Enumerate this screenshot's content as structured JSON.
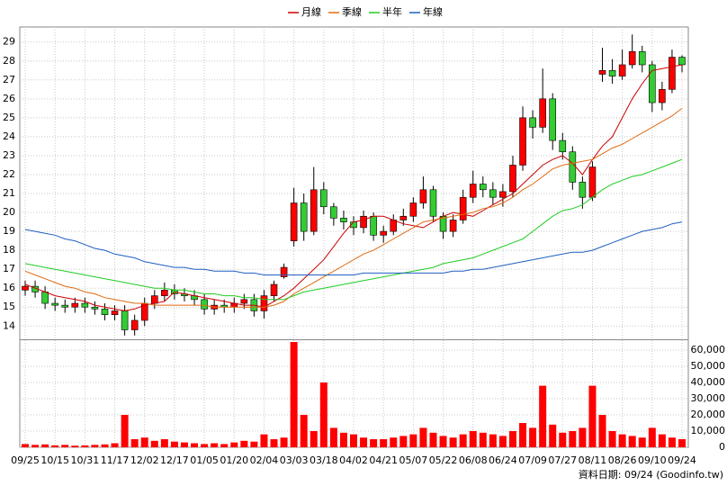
{
  "chart_data": {
    "type": "candlestick",
    "categories": [
      "09/25",
      null,
      null,
      "10/15",
      null,
      null,
      "10/31",
      null,
      null,
      "11/17",
      null,
      null,
      "12/02",
      null,
      null,
      "12/17",
      null,
      null,
      "01/05",
      null,
      null,
      "01/20",
      null,
      null,
      "02/04",
      null,
      null,
      "03/03",
      null,
      null,
      "03/18",
      null,
      null,
      "04/02",
      null,
      null,
      "04/21",
      null,
      null,
      "05/07",
      null,
      null,
      "05/22",
      null,
      null,
      "06/08",
      null,
      null,
      "06/24",
      null,
      null,
      "07/09",
      null,
      null,
      "07/27",
      null,
      null,
      "08/11",
      null,
      null,
      "08/26",
      null,
      null,
      "09/10",
      null,
      null,
      "09/24"
    ],
    "open": [
      15.9,
      16.1,
      15.8,
      15.2,
      15.1,
      15.0,
      15.2,
      15.0,
      14.9,
      14.6,
      14.8,
      13.8,
      14.3,
      15.2,
      15.6,
      15.9,
      15.7,
      15.6,
      15.4,
      14.9,
      15.1,
      15.0,
      15.2,
      15.4,
      14.8,
      15.6,
      16.6,
      18.5,
      20.5,
      19.0,
      21.2,
      20.3,
      19.7,
      19.5,
      19.2,
      19.8,
      18.8,
      19.0,
      19.6,
      19.8,
      20.5,
      21.2,
      19.8,
      19.0,
      19.6,
      20.8,
      21.5,
      21.2,
      20.8,
      21.1,
      22.5,
      25.0,
      24.5,
      26.0,
      23.8,
      23.2,
      21.6,
      20.8,
      27.3,
      27.5,
      27.2,
      27.8,
      28.5,
      27.8,
      25.8,
      26.5,
      28.2
    ],
    "high": [
      16.4,
      16.4,
      16.1,
      15.5,
      15.4,
      15.5,
      15.5,
      15.3,
      15.2,
      15.1,
      15.1,
      14.6,
      15.5,
      15.9,
      16.3,
      16.2,
      16.0,
      15.9,
      15.7,
      15.4,
      15.4,
      15.5,
      15.7,
      15.7,
      15.9,
      16.4,
      17.3,
      21.3,
      21.0,
      22.4,
      21.6,
      20.5,
      20.1,
      19.8,
      20.1,
      20.0,
      19.3,
      19.9,
      20.2,
      20.8,
      21.9,
      21.4,
      20.0,
      19.9,
      21.2,
      22.2,
      21.9,
      21.6,
      21.5,
      23.0,
      25.6,
      25.4,
      27.6,
      26.3,
      24.2,
      23.5,
      21.9,
      22.7,
      28.7,
      28.1,
      28.6,
      29.4,
      28.8,
      28.0,
      26.9,
      28.6,
      28.3
    ],
    "low": [
      15.6,
      15.5,
      14.9,
      14.8,
      14.7,
      14.7,
      14.7,
      14.6,
      14.3,
      14.3,
      13.5,
      13.5,
      14.0,
      14.9,
      15.3,
      15.4,
      15.3,
      15.1,
      14.6,
      14.6,
      14.7,
      14.7,
      14.9,
      14.5,
      14.4,
      15.3,
      16.5,
      18.2,
      18.5,
      18.8,
      19.9,
      19.3,
      19.1,
      18.8,
      18.9,
      18.5,
      18.4,
      18.8,
      19.3,
      19.5,
      20.2,
      19.5,
      18.6,
      18.7,
      19.4,
      20.5,
      20.8,
      20.4,
      20.3,
      20.8,
      22.2,
      23.9,
      24.2,
      23.3,
      22.8,
      21.2,
      20.2,
      20.6,
      26.9,
      26.8,
      27.0,
      27.6,
      27.4,
      25.3,
      25.4,
      26.3,
      27.4
    ],
    "close": [
      16.1,
      15.8,
      15.2,
      15.1,
      15.0,
      15.2,
      15.0,
      14.9,
      14.6,
      14.8,
      13.8,
      14.3,
      15.2,
      15.6,
      15.9,
      15.7,
      15.6,
      15.4,
      14.9,
      15.1,
      15.0,
      15.2,
      15.4,
      14.8,
      15.6,
      16.2,
      17.1,
      20.5,
      19.0,
      21.2,
      20.3,
      19.7,
      19.5,
      19.2,
      19.8,
      18.8,
      19.0,
      19.6,
      19.8,
      20.5,
      21.2,
      19.8,
      19.0,
      19.6,
      20.8,
      21.5,
      21.2,
      20.8,
      21.1,
      22.5,
      25.0,
      24.5,
      26.0,
      23.8,
      23.2,
      21.6,
      20.8,
      22.4,
      27.5,
      27.2,
      27.8,
      28.5,
      27.8,
      25.8,
      26.5,
      28.2,
      27.8
    ],
    "volume": [
      2000,
      1500,
      1800,
      1200,
      1500,
      1000,
      1200,
      1500,
      1800,
      2500,
      20000,
      5000,
      6000,
      4000,
      5000,
      3500,
      3000,
      2500,
      2000,
      2500,
      2000,
      3000,
      4000,
      3500,
      8000,
      5000,
      6000,
      65000,
      20000,
      10000,
      40000,
      12000,
      9000,
      8000,
      6000,
      5000,
      5000,
      6000,
      7000,
      8000,
      12000,
      9000,
      7000,
      6000,
      8000,
      10000,
      9000,
      8000,
      7000,
      10000,
      15000,
      12000,
      38000,
      14000,
      9000,
      10000,
      12000,
      38000,
      20000,
      10000,
      8000,
      7000,
      6000,
      12000,
      8000,
      6000,
      5000
    ],
    "up_color": "#ff0000",
    "down_color": "#33cc33",
    "volume_color": "#ff0000",
    "series": [
      {
        "name": "月線",
        "color": "#cc0000",
        "values": [
          16.2,
          16.0,
          15.8,
          15.6,
          15.5,
          15.4,
          15.3,
          15.1,
          15.0,
          14.9,
          14.8,
          14.9,
          15.1,
          15.2,
          15.3,
          15.8,
          15.7,
          15.6,
          15.5,
          15.4,
          15.3,
          15.2,
          15.1,
          15.1,
          15.0,
          15.3,
          15.6,
          16.0,
          16.5,
          17.0,
          17.5,
          18.2,
          18.9,
          19.5,
          19.6,
          19.8,
          19.8,
          19.6,
          19.4,
          19.3,
          19.2,
          19.5,
          19.8,
          20.0,
          19.9,
          19.8,
          20.1,
          20.4,
          20.7,
          21.0,
          21.5,
          22.0,
          22.5,
          22.8,
          23.0,
          22.6,
          22.0,
          22.8,
          23.5,
          24.0,
          25.0,
          26.0,
          26.8,
          27.5,
          27.6,
          27.7,
          27.8
        ]
      },
      {
        "name": "季線",
        "color": "#e06a10",
        "values": [
          16.9,
          16.7,
          16.5,
          16.3,
          16.1,
          16.0,
          15.8,
          15.7,
          15.5,
          15.4,
          15.3,
          15.2,
          15.2,
          15.1,
          15.1,
          15.1,
          15.1,
          15.1,
          15.1,
          15.0,
          15.0,
          15.0,
          15.0,
          15.0,
          15.0,
          15.1,
          15.3,
          15.7,
          16.0,
          16.3,
          16.6,
          16.9,
          17.2,
          17.5,
          17.8,
          18.0,
          18.3,
          18.6,
          18.9,
          19.2,
          19.5,
          19.6,
          19.7,
          19.8,
          19.9,
          20.0,
          20.2,
          20.3,
          20.5,
          20.8,
          21.2,
          21.5,
          21.9,
          22.3,
          22.5,
          22.6,
          22.7,
          22.8,
          23.1,
          23.4,
          23.6,
          23.9,
          24.2,
          24.5,
          24.8,
          25.1,
          25.5
        ]
      },
      {
        "name": "半年",
        "color": "#22cc22",
        "values": [
          17.3,
          17.2,
          17.1,
          17.0,
          16.9,
          16.8,
          16.7,
          16.6,
          16.5,
          16.4,
          16.3,
          16.2,
          16.1,
          16.0,
          16.0,
          15.9,
          15.9,
          15.8,
          15.7,
          15.7,
          15.6,
          15.6,
          15.5,
          15.5,
          15.4,
          15.4,
          15.4,
          15.6,
          15.8,
          15.9,
          16.0,
          16.1,
          16.2,
          16.3,
          16.4,
          16.5,
          16.6,
          16.7,
          16.8,
          16.9,
          17.0,
          17.1,
          17.3,
          17.4,
          17.5,
          17.6,
          17.8,
          18.0,
          18.2,
          18.4,
          18.6,
          19.0,
          19.4,
          19.8,
          20.1,
          20.2,
          20.4,
          20.8,
          21.2,
          21.5,
          21.7,
          21.9,
          22.0,
          22.2,
          22.4,
          22.6,
          22.8
        ]
      },
      {
        "name": "年線",
        "color": "#1f5fc0",
        "values": [
          19.1,
          19.0,
          18.9,
          18.8,
          18.6,
          18.5,
          18.3,
          18.1,
          18.0,
          17.8,
          17.7,
          17.6,
          17.4,
          17.3,
          17.2,
          17.1,
          17.1,
          17.0,
          17.0,
          16.9,
          16.9,
          16.9,
          16.8,
          16.8,
          16.7,
          16.7,
          16.7,
          16.7,
          16.7,
          16.7,
          16.7,
          16.7,
          16.7,
          16.7,
          16.8,
          16.8,
          16.8,
          16.8,
          16.8,
          16.8,
          16.8,
          16.8,
          16.8,
          16.9,
          16.9,
          17.0,
          17.0,
          17.1,
          17.2,
          17.3,
          17.4,
          17.5,
          17.6,
          17.7,
          17.8,
          17.9,
          17.9,
          18.0,
          18.2,
          18.4,
          18.6,
          18.8,
          19.0,
          19.1,
          19.2,
          19.4,
          19.5
        ]
      }
    ],
    "ylim": [
      13.3,
      29.7
    ],
    "yticks": [
      14,
      15,
      16,
      17,
      18,
      19,
      20,
      21,
      22,
      23,
      24,
      25,
      26,
      27,
      28,
      29
    ],
    "y2lim": [
      0,
      65000
    ],
    "y2ticks": [
      0,
      {
        "value": 10000,
        "label": "10,000"
      },
      {
        "value": 20000,
        "label": "20,000"
      },
      {
        "value": 30000,
        "label": "30,000"
      },
      {
        "value": 40000,
        "label": "40,000"
      },
      {
        "value": 50000,
        "label": "50,000"
      },
      {
        "value": 60000,
        "label": "60,000"
      }
    ],
    "grid": true,
    "source": "資料日期: 09/24  (Goodinfo.tw)"
  }
}
